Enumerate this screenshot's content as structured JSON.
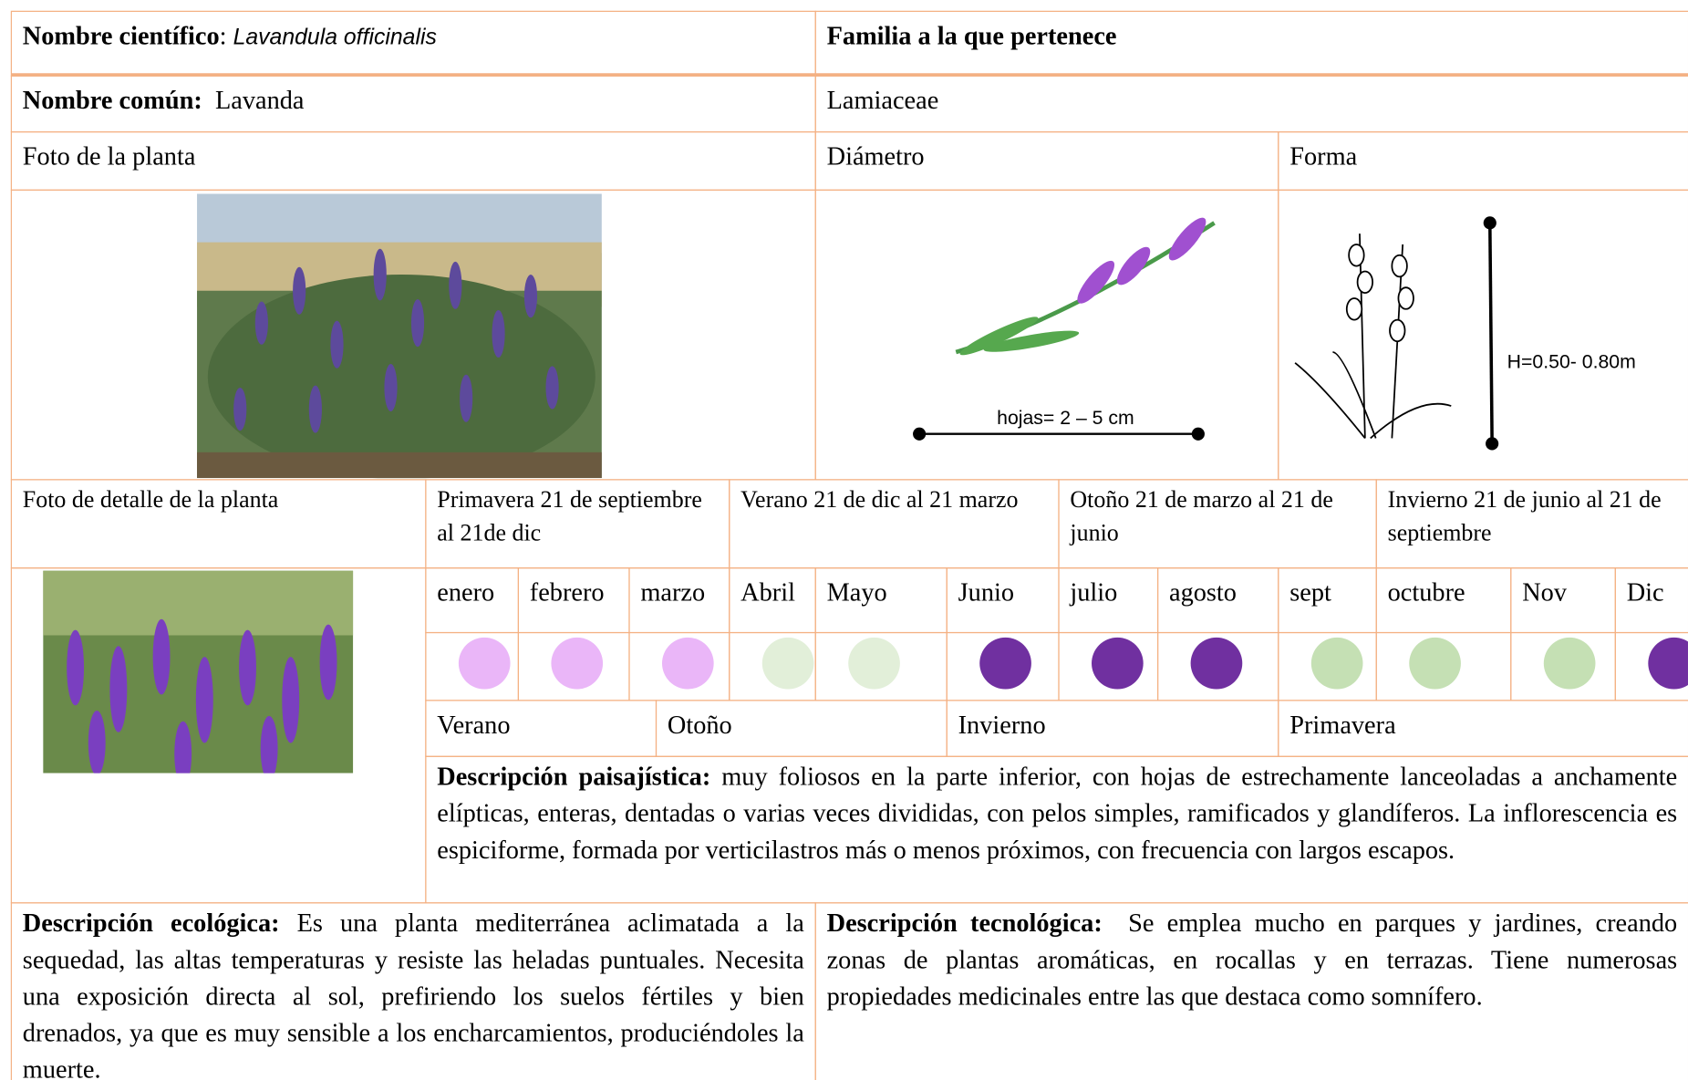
{
  "header": {
    "scientific_name_label": "Nombre científico",
    "scientific_name": "Lavandula officinalis",
    "family_label": "Familia a la que pertenece",
    "common_name_label": "Nombre común:",
    "common_name": "Lavanda",
    "family": "Lamiaceae"
  },
  "figures": {
    "photo_label": "Foto de la planta",
    "diameter_label": "Diámetro",
    "shape_label": "Forma",
    "leaf_measure": "hojas= 2 – 5 cm",
    "height_measure": "H=0.50- 0.80m",
    "detail_photo_label": "Foto de detalle de la planta"
  },
  "seasons_top": [
    "Primavera 21 de septiembre al 21de dic",
    "Verano 21 de dic al 21 marzo",
    "Otoño 21 de marzo al 21 de junio",
    "Invierno 21 de junio al 21 de septiembre"
  ],
  "months": [
    "enero",
    "febrero",
    "marzo",
    "Abril",
    "Mayo",
    "Junio",
    "julio",
    "agosto",
    "sept",
    "octubre",
    "Nov",
    "Dic"
  ],
  "month_colors": [
    "#eab6f8",
    "#eab6f8",
    "#eab6f8",
    "#e2efd9",
    "#e2efd9",
    "#7030a0",
    "#7030a0",
    "#7030a0",
    "#c5e0b4",
    "#c5e0b4",
    "#c5e0b4",
    "#7030a0"
  ],
  "seasons_bottom": [
    "Verano",
    "Otoño",
    "Invierno",
    "Primavera"
  ],
  "descriptions": {
    "landscape_label": "Descripción paisajística:",
    "landscape": "muy foliosos en la parte inferior, con hojas de estrechamente lanceoladas a anchamente elípticas, enteras, dentadas o varias veces divididas, con pelos simples, ramificados y glandíferos. La inflorescencia es espiciforme, formada por verticilastros más o menos próximos, con frecuencia con largos escapos.",
    "ecological_label": "Descripción ecológica:",
    "ecological": "Es una planta mediterránea aclimatada a la sequedad, las altas temperaturas y resiste las heladas puntuales. Necesita una exposición directa al sol, prefiriendo los suelos fértiles y bien drenados, ya que es muy sensible a los encharcamientos, produciéndoles la muerte.",
    "technological_label": "Descripción tecnológica:",
    "technological": "Se emplea mucho en parques y jardines, creando zonas de plantas aromáticas, en rocallas y en terrazas. Tiene numerosas propiedades medicinales entre las que destaca como somnífero."
  }
}
